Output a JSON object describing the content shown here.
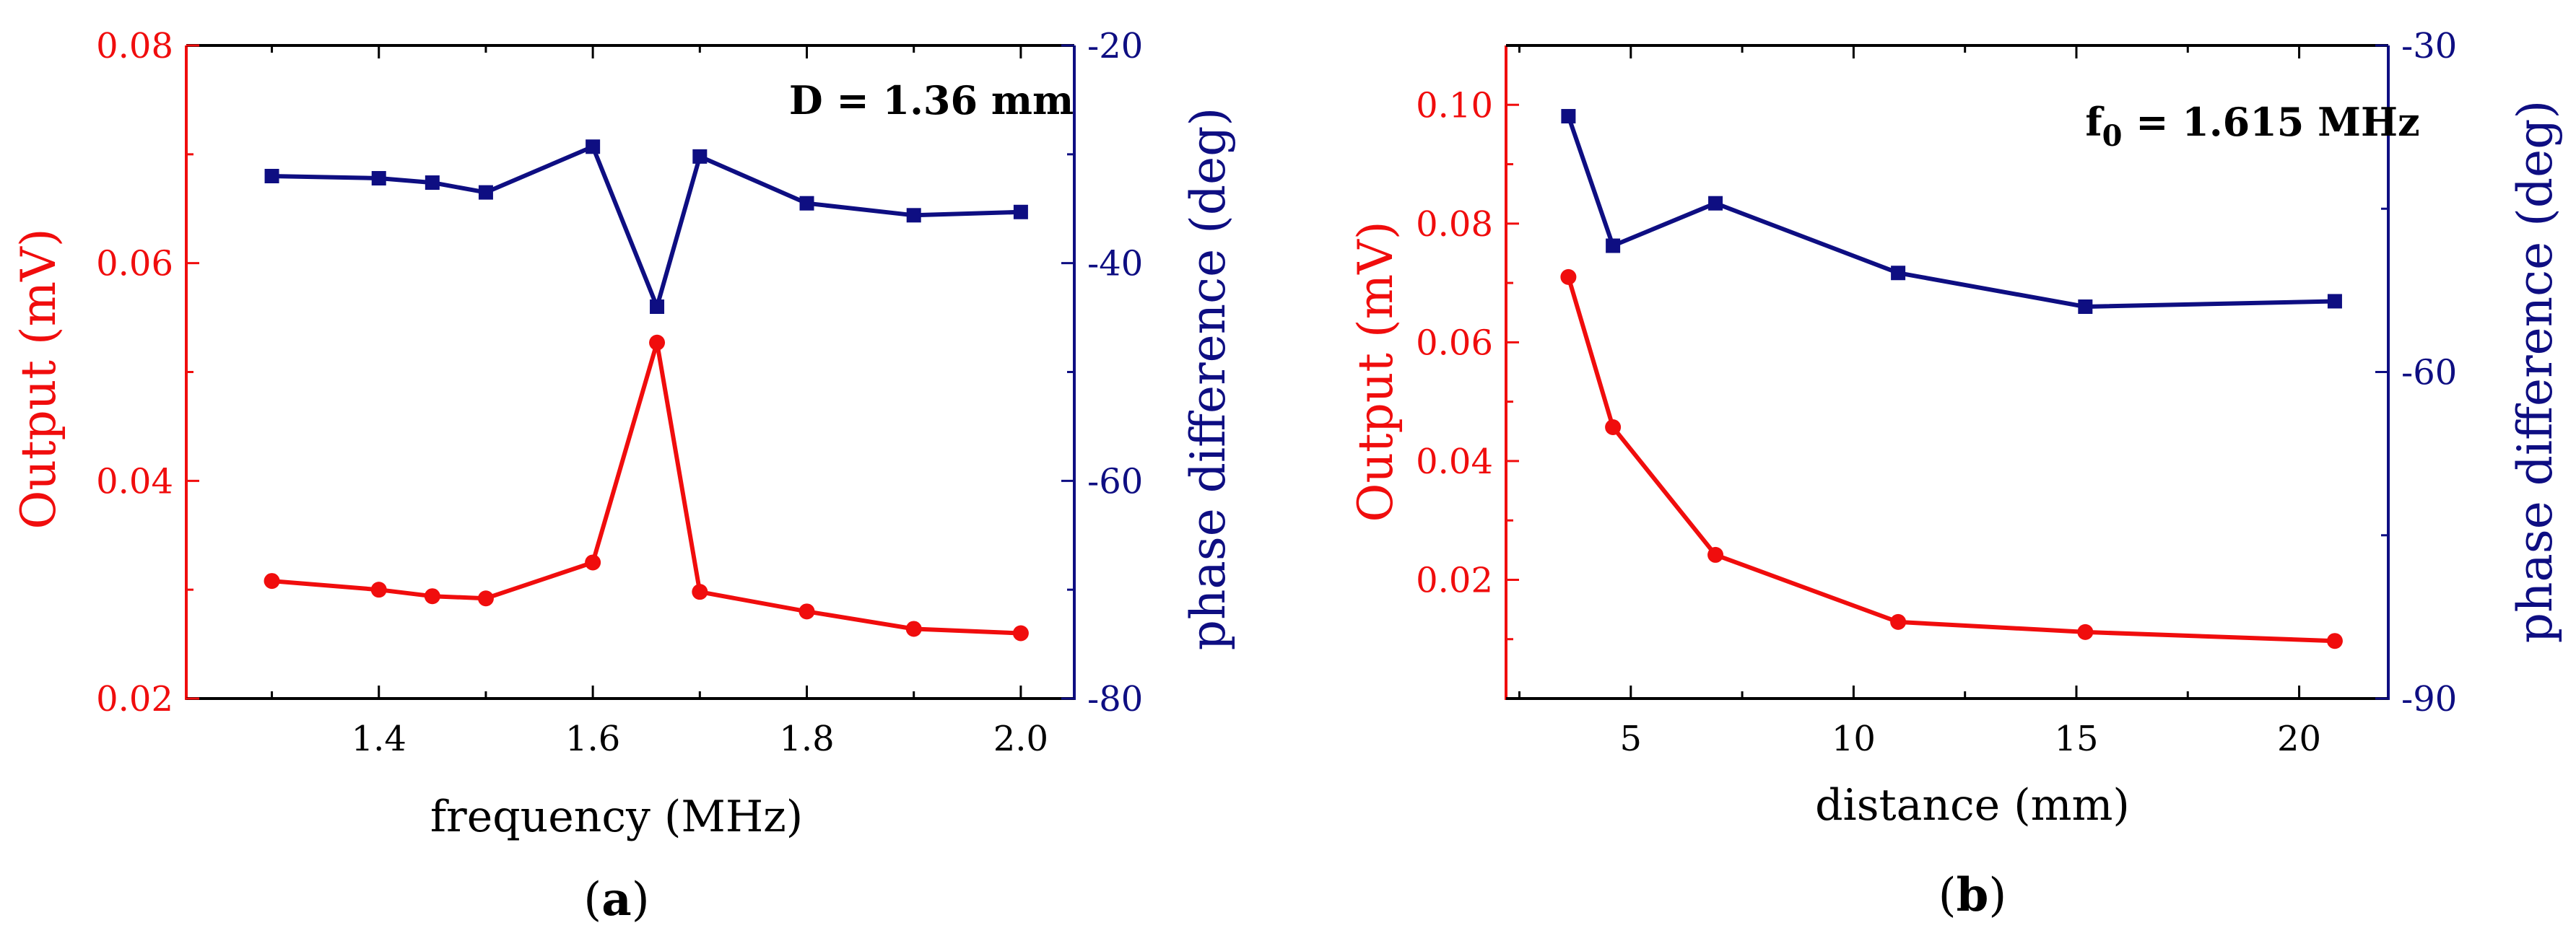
{
  "colors": {
    "output": "#f00d0d",
    "phase": "#0e0e82",
    "axis": "#000000"
  },
  "chart_data": [
    {
      "id": "a",
      "type": "line",
      "caption": "a",
      "annotation": "D = 1.36 mm",
      "xlabel": "frequency (MHz)",
      "ylabel_left": "Output (mV)",
      "ylabel_right": "phase difference (deg)",
      "xlim": [
        1.22,
        2.05
      ],
      "ylim_left": [
        0.02,
        0.08
      ],
      "ylim_right": [
        -80,
        -20
      ],
      "xticks": [
        1.4,
        1.6,
        1.8,
        2.0
      ],
      "xticklabels": [
        "1.4",
        "1.6",
        "1.8",
        "2.0"
      ],
      "xminor": [
        1.3,
        1.5,
        1.7,
        1.9
      ],
      "yticks_left": [
        0.02,
        0.04,
        0.06,
        0.08
      ],
      "yticklabels_left": [
        "0.02",
        "0.04",
        "0.06",
        "0.08"
      ],
      "yminor_left": [
        0.03,
        0.05,
        0.07
      ],
      "yticks_right": [
        -80,
        -60,
        -40,
        -20
      ],
      "yticklabels_right": [
        "-80",
        "-60",
        "-40",
        "-20"
      ],
      "yminor_right": [
        -70,
        -50,
        -30
      ],
      "series": [
        {
          "name": "Output",
          "axis": "left",
          "marker": "circle",
          "x": [
            1.3,
            1.4,
            1.45,
            1.5,
            1.6,
            1.66,
            1.7,
            1.8,
            1.9,
            2.0
          ],
          "y": [
            0.0308,
            0.03,
            0.0294,
            0.0292,
            0.0325,
            0.0527,
            0.0298,
            0.028,
            0.0264,
            0.026
          ]
        },
        {
          "name": "phase difference",
          "axis": "right",
          "marker": "square",
          "x": [
            1.3,
            1.4,
            1.45,
            1.5,
            1.6,
            1.66,
            1.7,
            1.8,
            1.9,
            2.0
          ],
          "y": [
            -32.0,
            -32.2,
            -32.6,
            -33.5,
            -29.3,
            -44.0,
            -30.2,
            -34.5,
            -35.6,
            -35.3
          ]
        }
      ]
    },
    {
      "id": "b",
      "type": "line",
      "caption": "b",
      "annotation_main": "f",
      "annotation_sub": "0",
      "annotation_rest": " = 1.615 MHz",
      "xlabel": "distance (mm)",
      "ylabel_left": "Output (mV)",
      "ylabel_right": "phase difference (deg)",
      "xlim": [
        2.2,
        22
      ],
      "ylim_left": [
        0.0,
        0.11
      ],
      "ylim_right": [
        -90,
        -30
      ],
      "xticks": [
        5,
        10,
        15,
        20
      ],
      "xticklabels": [
        "5",
        "10",
        "15",
        "20"
      ],
      "xminor": [
        2.5,
        7.5,
        12.5,
        17.5
      ],
      "yticks_left": [
        0.02,
        0.04,
        0.06,
        0.08,
        0.1
      ],
      "yticklabels_left": [
        "0.02",
        "0.04",
        "0.06",
        "0.08",
        "0.10"
      ],
      "yminor_left": [
        0.01,
        0.03,
        0.05,
        0.07,
        0.09
      ],
      "yticks_right": [
        -90,
        -60,
        -30
      ],
      "yticklabels_right": [
        "-90",
        "-60",
        "-30"
      ],
      "yminor_right": [
        -75,
        -45
      ],
      "series": [
        {
          "name": "Output",
          "axis": "left",
          "marker": "circle",
          "x": [
            3.6,
            4.6,
            6.9,
            11.0,
            15.2,
            20.8
          ],
          "y": [
            0.071,
            0.0457,
            0.0242,
            0.0129,
            0.0112,
            0.0097
          ]
        },
        {
          "name": "phase difference",
          "axis": "right",
          "marker": "square",
          "x": [
            3.6,
            4.6,
            6.9,
            11.0,
            15.2,
            20.8
          ],
          "y": [
            -36.5,
            -48.4,
            -44.5,
            -50.9,
            -54.0,
            -53.5
          ]
        }
      ]
    }
  ]
}
